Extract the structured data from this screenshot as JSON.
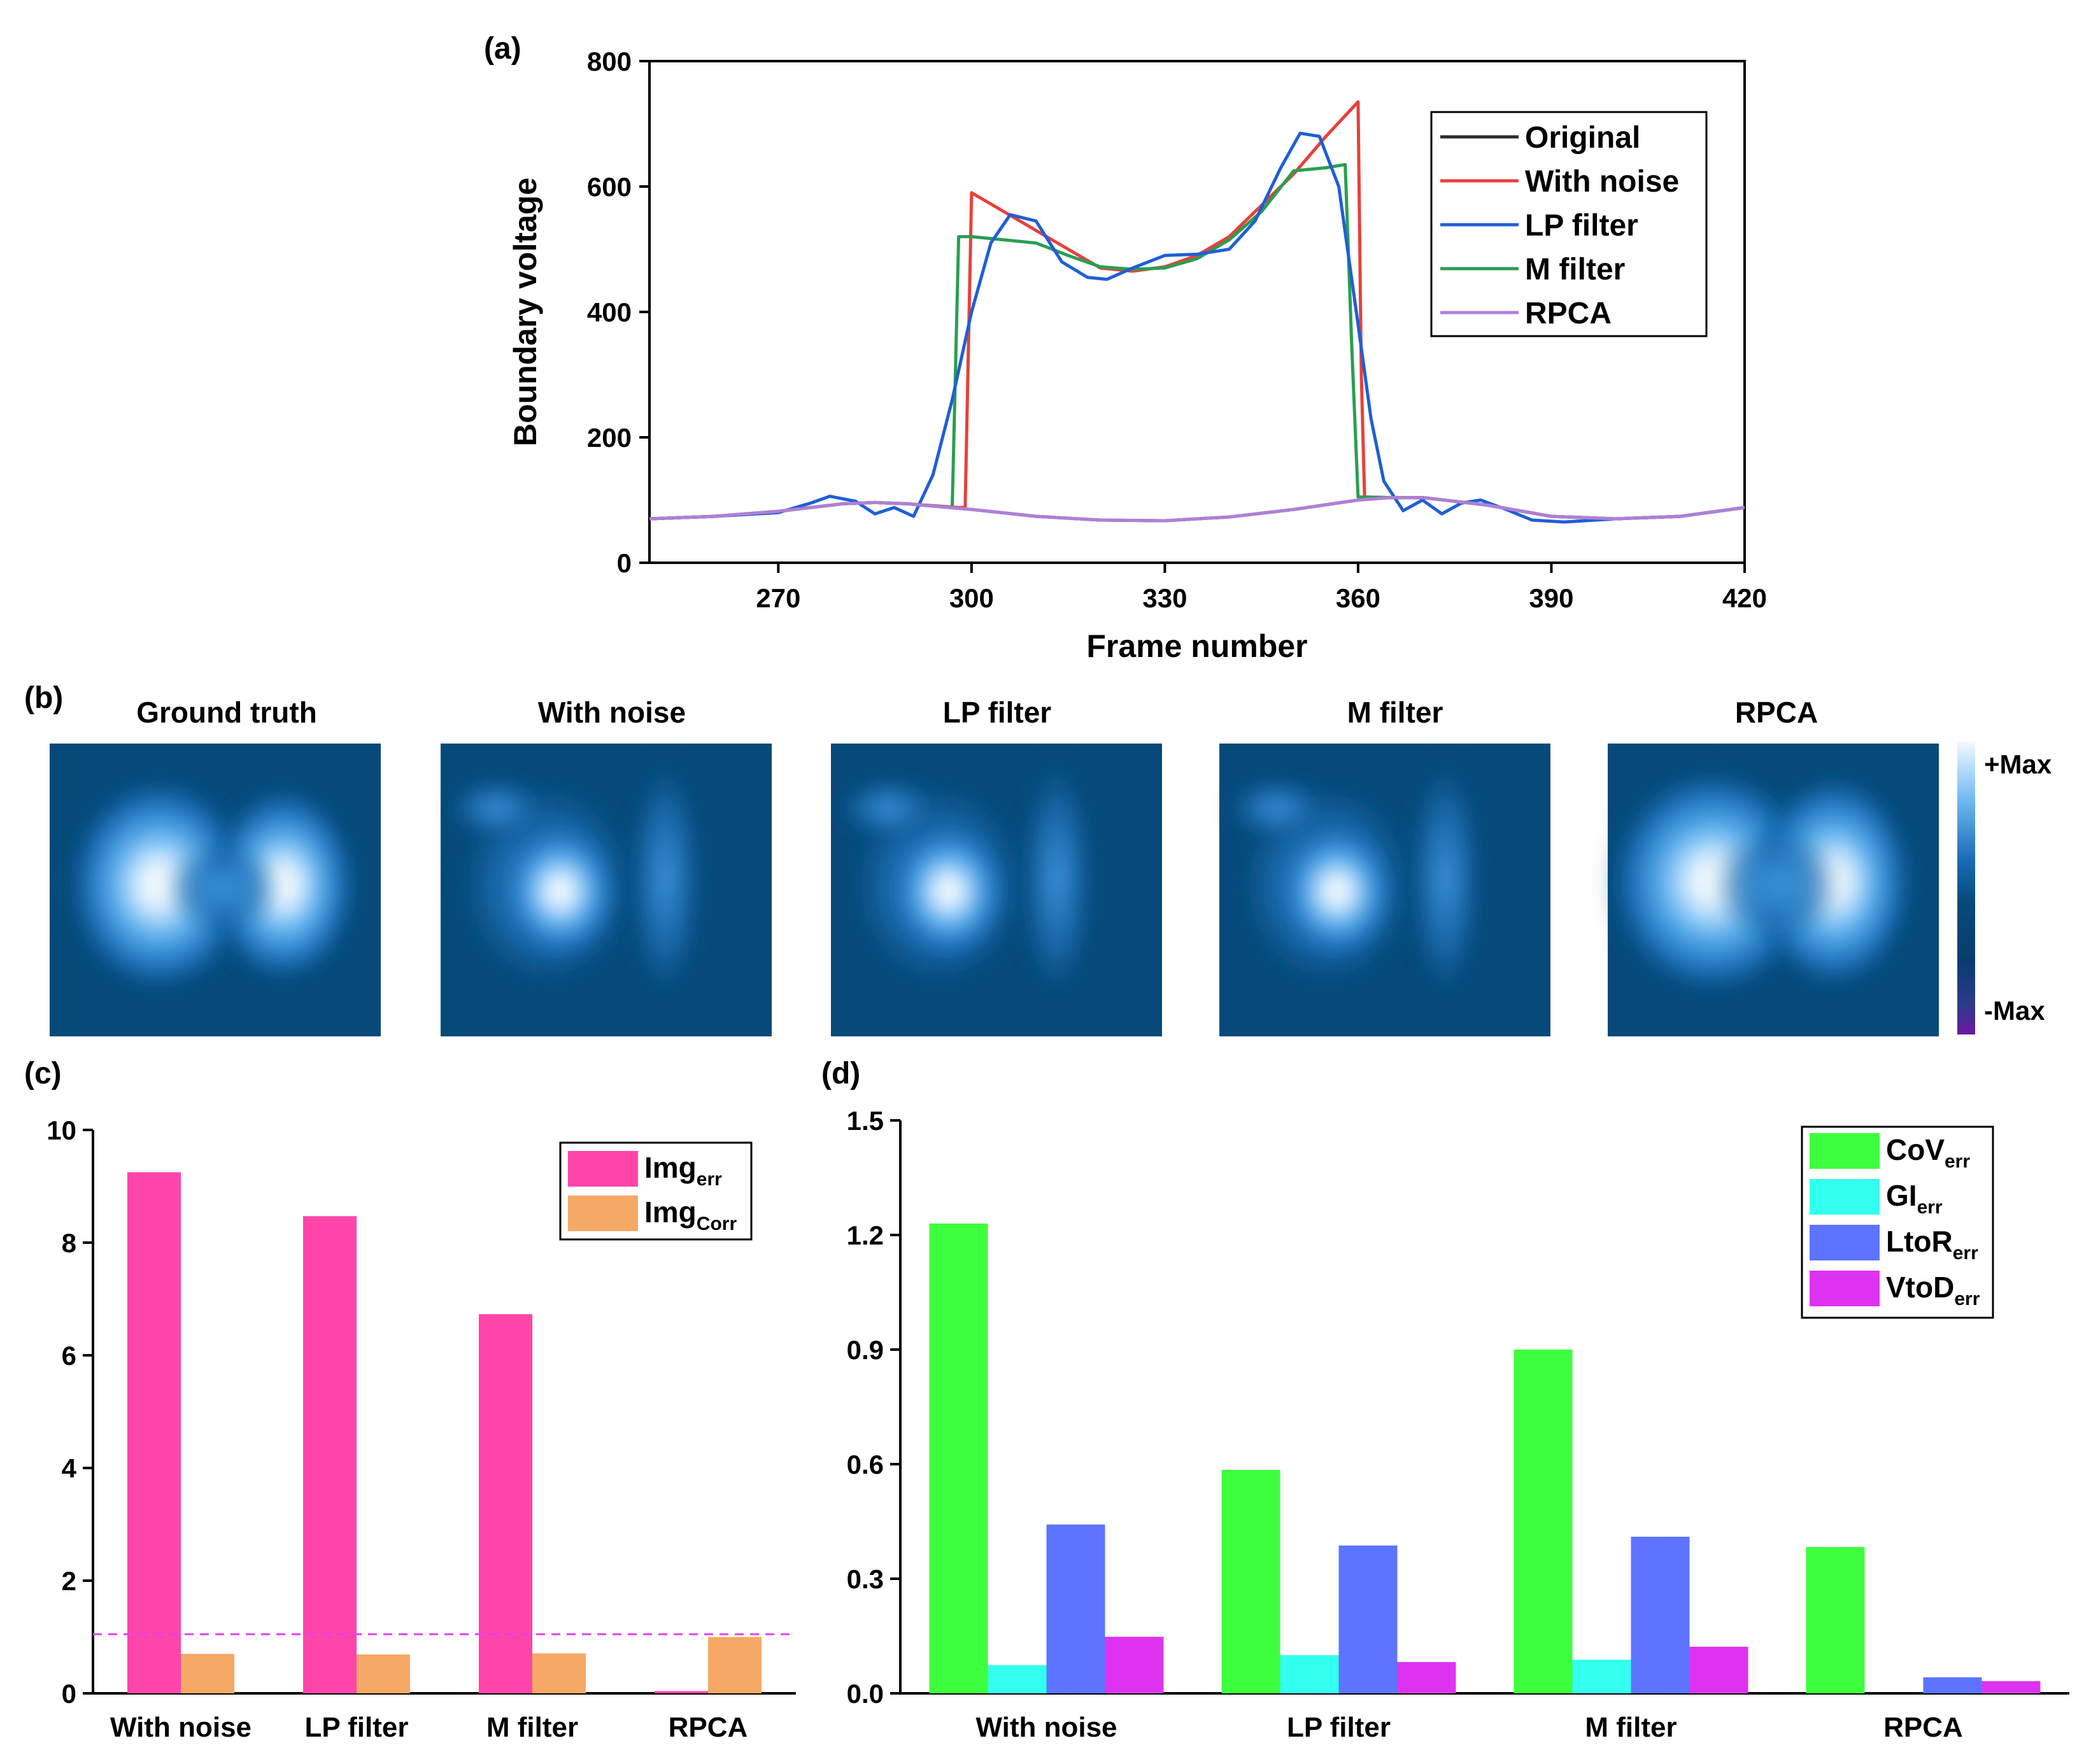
{
  "colors": {
    "original": "#2b2b2b",
    "with_noise": "#e8403a",
    "lp_filter": "#1f5fd6",
    "m_filter": "#2a9e50",
    "rpca": "#b07fd8",
    "img_err": "#ff44aa",
    "img_corr": "#f5a964",
    "threshold": "#e040f0",
    "cov": "#3dff3d",
    "gi": "#33ffee",
    "ltor": "#5c74ff",
    "vtod": "#dd33f0",
    "heat_bg": "#064a7a"
  },
  "panel_labels": {
    "a": "(a)",
    "b": "(b)",
    "c": "(c)",
    "d": "(d)"
  },
  "chart_data": [
    {
      "id": "a",
      "type": "line",
      "title": "",
      "xlabel": "Frame number",
      "ylabel": "Boundary voltage",
      "xlim": [
        250,
        420
      ],
      "ylim": [
        0,
        800
      ],
      "xticks": [
        270,
        300,
        330,
        360,
        390,
        420
      ],
      "yticks": [
        0,
        200,
        400,
        600,
        800
      ],
      "legend_position": "top-right",
      "series": [
        {
          "name": "Original",
          "color_key": "original",
          "x": [
            250,
            260,
            270,
            280,
            285,
            290,
            300,
            310,
            320,
            330,
            340,
            350,
            360,
            365,
            370,
            380,
            390,
            400,
            410,
            420
          ],
          "y": [
            70,
            74,
            82,
            94,
            96,
            94,
            85,
            74,
            68,
            67,
            73,
            85,
            100,
            104,
            104,
            92,
            74,
            70,
            74,
            88
          ]
        },
        {
          "name": "With noise",
          "color_key": "with_noise",
          "x": [
            250,
            260,
            270,
            280,
            285,
            290,
            298,
            299,
            300,
            305,
            310,
            315,
            320,
            325,
            330,
            335,
            340,
            345,
            350,
            355,
            360,
            360.5,
            361,
            365,
            370,
            380,
            390,
            400,
            410,
            420
          ],
          "y": [
            70,
            74,
            82,
            94,
            96,
            94,
            88,
            88,
            590,
            560,
            530,
            500,
            470,
            465,
            472,
            490,
            520,
            570,
            620,
            680,
            735,
            300,
            105,
            104,
            104,
            92,
            74,
            70,
            74,
            88
          ]
        },
        {
          "name": "LP filter",
          "color_key": "lp_filter",
          "x": [
            250,
            260,
            270,
            275,
            278,
            282,
            285,
            288,
            291,
            294,
            297,
            300,
            303,
            306,
            310,
            314,
            318,
            321,
            325,
            330,
            335,
            340,
            344,
            348,
            351,
            354,
            357,
            360,
            362,
            364,
            367,
            370,
            373,
            376,
            379,
            383,
            387,
            392,
            400,
            410,
            420
          ],
          "y": [
            70,
            74,
            80,
            95,
            106,
            98,
            78,
            88,
            74,
            140,
            260,
            400,
            510,
            555,
            545,
            480,
            455,
            452,
            470,
            490,
            492,
            500,
            545,
            630,
            685,
            680,
            600,
            380,
            230,
            130,
            83,
            100,
            78,
            95,
            100,
            85,
            68,
            65,
            70,
            74,
            88
          ]
        },
        {
          "name": "M filter",
          "color_key": "m_filter",
          "x": [
            250,
            260,
            270,
            280,
            285,
            290,
            297,
            298,
            300,
            305,
            310,
            315,
            320,
            325,
            330,
            335,
            340,
            345,
            350,
            355,
            358,
            359,
            360,
            365,
            370,
            380,
            390,
            400,
            410,
            420
          ],
          "y": [
            70,
            74,
            82,
            94,
            96,
            94,
            88,
            520,
            520,
            515,
            510,
            490,
            472,
            468,
            470,
            485,
            515,
            560,
            625,
            630,
            635,
            350,
            105,
            104,
            104,
            92,
            74,
            70,
            74,
            88
          ]
        },
        {
          "name": "RPCA",
          "color_key": "rpca",
          "x": [
            250,
            260,
            270,
            280,
            285,
            290,
            300,
            310,
            320,
            330,
            340,
            350,
            360,
            365,
            370,
            380,
            390,
            400,
            410,
            420
          ],
          "y": [
            70,
            74,
            82,
            94,
            96,
            94,
            85,
            74,
            68,
            67,
            73,
            85,
            100,
            104,
            104,
            92,
            74,
            70,
            74,
            88
          ]
        }
      ]
    },
    {
      "id": "c",
      "type": "bar",
      "title": "",
      "xlabel": "",
      "ylabel": "",
      "categories": [
        "With noise",
        "LP filter",
        "M filter",
        "RPCA"
      ],
      "ylim": [
        0,
        10
      ],
      "yticks": [
        0,
        2,
        4,
        6,
        8,
        10
      ],
      "legend_position": "top-right",
      "threshold_line": 1.05,
      "series": [
        {
          "name": "Img",
          "sub": "err",
          "color_key": "img_err",
          "values": [
            9.25,
            8.47,
            6.73,
            0.04
          ]
        },
        {
          "name": "Img",
          "sub": "Corr",
          "color_key": "img_corr",
          "values": [
            0.7,
            0.69,
            0.71,
            1.0
          ]
        }
      ]
    },
    {
      "id": "d",
      "type": "bar",
      "title": "",
      "xlabel": "",
      "ylabel": "",
      "categories": [
        "With noise",
        "LP filter",
        "M filter",
        "RPCA"
      ],
      "ylim": [
        0,
        1.5
      ],
      "yticks": [
        "0.0",
        "0.3",
        "0.6",
        "0.9",
        "1.2",
        "1.5"
      ],
      "legend_position": "top-right",
      "series": [
        {
          "name": "CoV",
          "sub": "err",
          "color_key": "cov",
          "values": [
            1.23,
            0.585,
            0.9,
            0.383
          ]
        },
        {
          "name": "GI",
          "sub": "err",
          "color_key": "gi",
          "values": [
            0.074,
            0.1,
            0.088,
            0.0
          ]
        },
        {
          "name": "LtoR",
          "sub": "err",
          "color_key": "ltor",
          "values": [
            0.442,
            0.387,
            0.41,
            0.042
          ]
        },
        {
          "name": "VtoD",
          "sub": "err",
          "color_key": "vtod",
          "values": [
            0.148,
            0.082,
            0.122,
            0.032
          ]
        }
      ]
    }
  ],
  "heatmaps": {
    "titles": [
      "Ground truth",
      "With noise",
      "LP filter",
      "M filter",
      "RPCA"
    ],
    "colorbar": {
      "max_label": "+Max",
      "min_label": "-Max"
    }
  }
}
